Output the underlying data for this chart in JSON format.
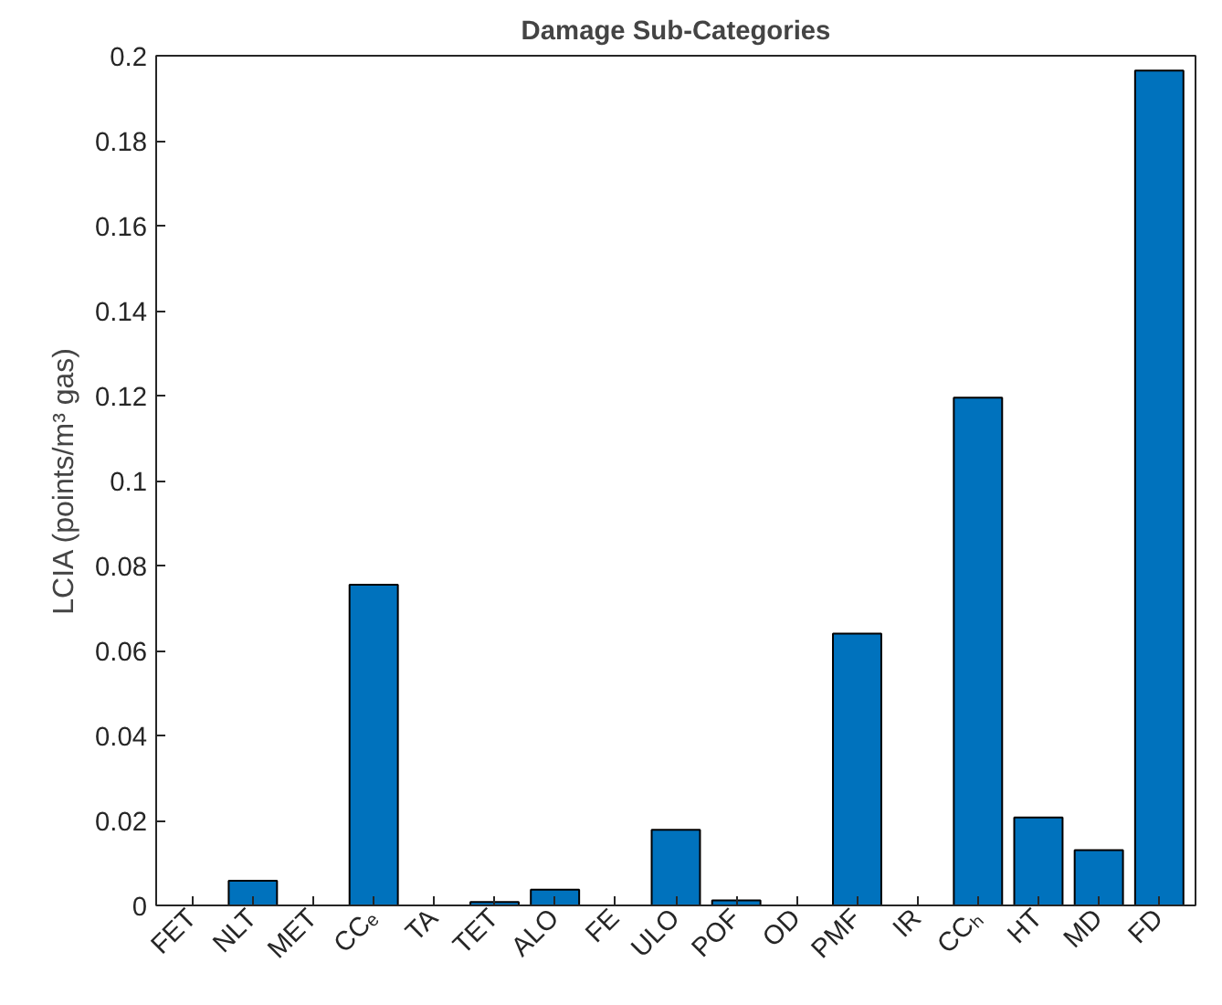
{
  "chart_data": {
    "type": "bar",
    "title": "Damage Sub-Categories",
    "ylabel": "LCIA (points/m³ gas)",
    "categories": [
      "FET",
      "NLT",
      "MET",
      "CCₑ",
      "TA",
      "TET",
      "ALO",
      "FE",
      "ULO",
      "POF",
      "OD",
      "PMF",
      "IR",
      "CCₕ",
      "HT",
      "MD",
      "FD"
    ],
    "values": [
      0,
      0.0058,
      0,
      0.0755,
      0,
      0.0008,
      0.0037,
      0,
      0.0178,
      0.0012,
      0,
      0.064,
      0,
      0.1195,
      0.0207,
      0.013,
      0.1965
    ],
    "color": "#0072bd",
    "ylim": [
      0,
      0.2
    ],
    "yticks": [
      0,
      0.02,
      0.04,
      0.06,
      0.08,
      0.1,
      0.12,
      0.14,
      0.16,
      0.18,
      0.2
    ],
    "grid": false
  }
}
